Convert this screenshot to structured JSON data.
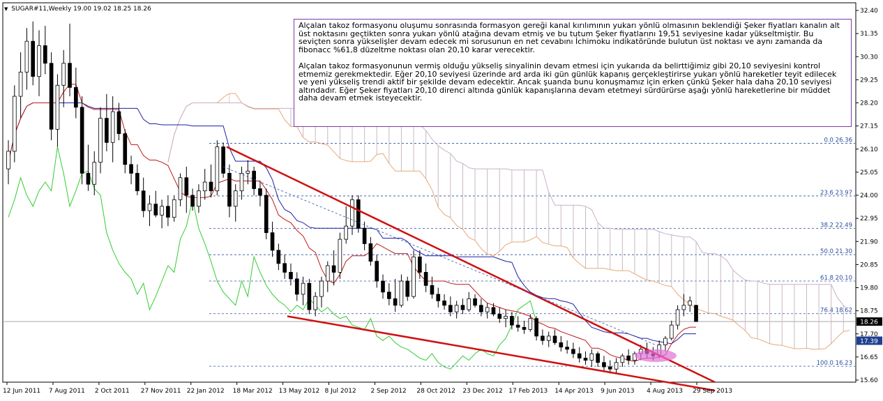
{
  "header": {
    "symbol": "SUGAR#11,Weekly",
    "ohlc": "19.00 19.02 18.25 18.26"
  },
  "annotation": {
    "paragraph1": "Alçalan takoz formasyonu oluşumu sonrasında formasyon gereği kanal kırılımının yukarı yönlü olmasının beklendiği Şeker fiyatları kanalın alt üst noktasını geçtikten sonra yukarı yönlü atağına devam etmiş ve bu tutum Şeker fiyatlarını 19,51 seviyesine kadar yükseltmiştir. Bu seviçten sonra yükselişler devam edecek mi sorusunun en net cevabını İchimoku indikatöründe bulutun üst noktası  ve aynı zamanda da fibonacc %61,8 düzeltme noktası olan 20,10 karar verecektir.",
    "paragraph2": "Alçalan takoz formasyonunun vermiş olduğu yükseliş sinyalinin devam etmesi için yukarıda da belirttiğimiz gibi 20,10 seviyesini kontrol etmemiz gerekmektedir. Eğer 20,10 seviyesi üzerinde ard arda iki gün günlük kapanış gerçekleştirirse yukarı yönlü hareketler teyit edilecek ve yeni yükseliş trendi aktif bir şekilde devam edecektir. Ancak şuanda bunu konuşmamız için erken çünkü Şeker hala daha 20,10 seviyesi altındadır. Eğer Şeker fiyatları 20,10 direnci altında günlük kapanışlarına devam etetmeyi sürdürürse aşağı yönlü hareketlerine bir müddet daha devam etmek isteyecektir."
  },
  "chart_data": {
    "type": "candlestick",
    "instrument": "SUGAR#11",
    "timeframe": "Weekly",
    "last": {
      "open": 19.0,
      "high": 19.02,
      "low": 18.25,
      "close": 18.26
    },
    "y_axis": {
      "range": [
        15.6,
        32.4
      ],
      "tick_labels": [
        "32.40",
        "31.35",
        "30.30",
        "29.25",
        "28.20",
        "27.15",
        "26.10",
        "25.05",
        "24.00",
        "22.95",
        "21.90",
        "20.85",
        "19.80",
        "18.75",
        "17.70",
        "16.65",
        "15.60"
      ]
    },
    "x_axis": {
      "tick_labels": [
        "12 Jun 2011",
        "7 Aug 2011",
        "2 Oct 2011",
        "27 Nov 2011",
        "22 Jan 2012",
        "18 Mar 2012",
        "13 May 2012",
        "8 Jul 2012",
        "2 Sep 2012",
        "28 Oct 2012",
        "23 Dec 2012",
        "17 Feb 2013",
        "14 Apr 2013",
        "9 Jun 2013",
        "4 Aug 2013",
        "29 Sep 2013"
      ]
    },
    "price_markers": [
      {
        "value": "18.26",
        "color": "#000000"
      },
      {
        "value": "17.39",
        "color": "#1f3f8f"
      }
    ],
    "fibonacci_levels": [
      {
        "label": "0.0 26.36",
        "value": 26.36
      },
      {
        "label": "23.6 23.97",
        "value": 23.97
      },
      {
        "label": "38.2 22.49",
        "value": 22.49
      },
      {
        "label": "50.0 21.30",
        "value": 21.3
      },
      {
        "label": "61.8 20.10",
        "value": 20.1
      },
      {
        "label": "76.4 18.62",
        "value": 18.62
      },
      {
        "label": "100.0 16.23",
        "value": 16.23
      }
    ],
    "wedge": {
      "upper": [
        [
          26.2,
          2012.19
        ],
        [
          15.6,
          2013.87
        ]
      ],
      "lower": [
        [
          18.5,
          2012.38
        ],
        [
          15.4,
          2013.87
        ]
      ]
    },
    "candles": [
      {
        "o": 25.2,
        "h": 26.5,
        "l": 24.5,
        "c": 26.0
      },
      {
        "o": 26.0,
        "h": 29.0,
        "l": 25.5,
        "c": 28.5
      },
      {
        "o": 28.5,
        "h": 30.5,
        "l": 27.5,
        "c": 29.6
      },
      {
        "o": 29.6,
        "h": 31.6,
        "l": 28.8,
        "c": 31.0
      },
      {
        "o": 31.0,
        "h": 31.9,
        "l": 29.0,
        "c": 29.4
      },
      {
        "o": 29.4,
        "h": 31.5,
        "l": 28.5,
        "c": 30.8
      },
      {
        "o": 30.8,
        "h": 31.7,
        "l": 29.5,
        "c": 30.0
      },
      {
        "o": 30.0,
        "h": 30.5,
        "l": 26.5,
        "c": 27.0
      },
      {
        "o": 27.0,
        "h": 29.5,
        "l": 26.2,
        "c": 29.0
      },
      {
        "o": 29.0,
        "h": 30.6,
        "l": 28.0,
        "c": 30.0
      },
      {
        "o": 30.0,
        "h": 31.8,
        "l": 28.5,
        "c": 28.9
      },
      {
        "o": 28.9,
        "h": 29.8,
        "l": 27.5,
        "c": 28.0
      },
      {
        "o": 28.0,
        "h": 28.5,
        "l": 24.5,
        "c": 25.0
      },
      {
        "o": 25.0,
        "h": 26.3,
        "l": 24.2,
        "c": 24.5
      },
      {
        "o": 24.5,
        "h": 26.0,
        "l": 24.0,
        "c": 25.5
      },
      {
        "o": 25.5,
        "h": 28.0,
        "l": 25.0,
        "c": 27.5
      },
      {
        "o": 27.5,
        "h": 28.6,
        "l": 26.0,
        "c": 26.4
      },
      {
        "o": 26.4,
        "h": 28.5,
        "l": 25.5,
        "c": 27.8
      },
      {
        "o": 27.8,
        "h": 28.2,
        "l": 26.5,
        "c": 26.8
      },
      {
        "o": 26.8,
        "h": 27.0,
        "l": 25.0,
        "c": 25.4
      },
      {
        "o": 25.4,
        "h": 25.8,
        "l": 24.5,
        "c": 25.0
      },
      {
        "o": 25.0,
        "h": 25.4,
        "l": 24.0,
        "c": 24.2
      },
      {
        "o": 24.2,
        "h": 24.8,
        "l": 23.0,
        "c": 23.3
      },
      {
        "o": 23.3,
        "h": 24.0,
        "l": 22.6,
        "c": 23.6
      },
      {
        "o": 23.6,
        "h": 24.2,
        "l": 23.0,
        "c": 23.1
      },
      {
        "o": 23.1,
        "h": 23.8,
        "l": 22.5,
        "c": 23.5
      },
      {
        "o": 23.5,
        "h": 24.0,
        "l": 22.6,
        "c": 23.0
      },
      {
        "o": 23.0,
        "h": 24.0,
        "l": 22.8,
        "c": 23.8
      },
      {
        "o": 23.8,
        "h": 25.0,
        "l": 23.5,
        "c": 24.8
      },
      {
        "o": 24.8,
        "h": 25.3,
        "l": 23.2,
        "c": 24.0
      },
      {
        "o": 24.0,
        "h": 24.3,
        "l": 23.3,
        "c": 23.5
      },
      {
        "o": 23.5,
        "h": 24.5,
        "l": 23.2,
        "c": 24.2
      },
      {
        "o": 24.2,
        "h": 25.2,
        "l": 23.8,
        "c": 24.6
      },
      {
        "o": 24.6,
        "h": 25.4,
        "l": 23.9,
        "c": 24.2
      },
      {
        "o": 24.2,
        "h": 26.5,
        "l": 24.0,
        "c": 26.2
      },
      {
        "o": 26.2,
        "h": 26.4,
        "l": 24.8,
        "c": 25.0
      },
      {
        "o": 25.0,
        "h": 25.4,
        "l": 23.0,
        "c": 23.5
      },
      {
        "o": 23.5,
        "h": 24.5,
        "l": 22.8,
        "c": 24.2
      },
      {
        "o": 24.2,
        "h": 25.3,
        "l": 23.8,
        "c": 25.0
      },
      {
        "o": 25.0,
        "h": 25.6,
        "l": 24.5,
        "c": 25.1
      },
      {
        "o": 25.1,
        "h": 25.3,
        "l": 24.0,
        "c": 24.3
      },
      {
        "o": 24.3,
        "h": 24.6,
        "l": 23.5,
        "c": 24.0
      },
      {
        "o": 24.0,
        "h": 24.3,
        "l": 22.0,
        "c": 22.3
      },
      {
        "o": 22.3,
        "h": 22.8,
        "l": 21.2,
        "c": 21.5
      },
      {
        "o": 21.5,
        "h": 21.8,
        "l": 20.6,
        "c": 20.9
      },
      {
        "o": 20.9,
        "h": 21.3,
        "l": 20.2,
        "c": 20.5
      },
      {
        "o": 20.5,
        "h": 20.9,
        "l": 19.9,
        "c": 20.2
      },
      {
        "o": 20.2,
        "h": 20.5,
        "l": 19.2,
        "c": 19.5
      },
      {
        "o": 19.5,
        "h": 20.3,
        "l": 19.0,
        "c": 20.0
      },
      {
        "o": 20.0,
        "h": 20.2,
        "l": 18.6,
        "c": 18.8
      },
      {
        "o": 18.8,
        "h": 19.6,
        "l": 18.5,
        "c": 19.4
      },
      {
        "o": 19.4,
        "h": 20.3,
        "l": 18.9,
        "c": 20.1
      },
      {
        "o": 20.1,
        "h": 21.0,
        "l": 19.6,
        "c": 20.8
      },
      {
        "o": 20.8,
        "h": 21.5,
        "l": 19.9,
        "c": 20.5
      },
      {
        "o": 20.5,
        "h": 22.3,
        "l": 20.2,
        "c": 22.0
      },
      {
        "o": 22.0,
        "h": 23.5,
        "l": 21.8,
        "c": 22.6
      },
      {
        "o": 22.6,
        "h": 24.0,
        "l": 22.2,
        "c": 23.8
      },
      {
        "o": 23.8,
        "h": 24.0,
        "l": 22.3,
        "c": 22.5
      },
      {
        "o": 22.5,
        "h": 22.8,
        "l": 21.5,
        "c": 21.8
      },
      {
        "o": 21.8,
        "h": 22.1,
        "l": 20.8,
        "c": 21.0
      },
      {
        "o": 21.0,
        "h": 21.3,
        "l": 19.8,
        "c": 20.1
      },
      {
        "o": 20.1,
        "h": 20.4,
        "l": 19.3,
        "c": 19.6
      },
      {
        "o": 19.6,
        "h": 20.0,
        "l": 19.0,
        "c": 19.3
      },
      {
        "o": 19.3,
        "h": 20.2,
        "l": 18.7,
        "c": 19.0
      },
      {
        "o": 19.0,
        "h": 20.4,
        "l": 18.9,
        "c": 20.1
      },
      {
        "o": 20.1,
        "h": 20.3,
        "l": 19.2,
        "c": 19.4
      },
      {
        "o": 19.4,
        "h": 21.5,
        "l": 19.3,
        "c": 21.2
      },
      {
        "o": 21.2,
        "h": 21.5,
        "l": 20.2,
        "c": 20.5
      },
      {
        "o": 20.5,
        "h": 20.9,
        "l": 19.6,
        "c": 19.9
      },
      {
        "o": 19.9,
        "h": 20.3,
        "l": 19.3,
        "c": 19.5
      },
      {
        "o": 19.5,
        "h": 19.8,
        "l": 18.9,
        "c": 19.2
      },
      {
        "o": 19.2,
        "h": 19.5,
        "l": 18.8,
        "c": 19.0
      },
      {
        "o": 19.0,
        "h": 19.4,
        "l": 18.5,
        "c": 18.7
      },
      {
        "o": 18.7,
        "h": 19.2,
        "l": 18.4,
        "c": 19.0
      },
      {
        "o": 19.0,
        "h": 19.3,
        "l": 18.6,
        "c": 18.8
      },
      {
        "o": 18.8,
        "h": 19.6,
        "l": 18.7,
        "c": 19.3
      },
      {
        "o": 19.3,
        "h": 19.5,
        "l": 18.9,
        "c": 19.0
      },
      {
        "o": 19.0,
        "h": 19.3,
        "l": 18.5,
        "c": 18.7
      },
      {
        "o": 18.7,
        "h": 19.1,
        "l": 18.4,
        "c": 18.9
      },
      {
        "o": 18.9,
        "h": 19.1,
        "l": 18.5,
        "c": 18.6
      },
      {
        "o": 18.6,
        "h": 18.9,
        "l": 18.2,
        "c": 18.4
      },
      {
        "o": 18.4,
        "h": 18.8,
        "l": 18.0,
        "c": 18.5
      },
      {
        "o": 18.5,
        "h": 18.7,
        "l": 17.9,
        "c": 18.1
      },
      {
        "o": 18.1,
        "h": 18.5,
        "l": 17.8,
        "c": 18.0
      },
      {
        "o": 18.0,
        "h": 18.3,
        "l": 17.7,
        "c": 17.9
      },
      {
        "o": 17.9,
        "h": 18.6,
        "l": 17.8,
        "c": 18.4
      },
      {
        "o": 18.4,
        "h": 18.5,
        "l": 17.4,
        "c": 17.6
      },
      {
        "o": 17.6,
        "h": 17.9,
        "l": 17.2,
        "c": 17.4
      },
      {
        "o": 17.4,
        "h": 17.8,
        "l": 17.1,
        "c": 17.6
      },
      {
        "o": 17.6,
        "h": 17.9,
        "l": 17.2,
        "c": 17.3
      },
      {
        "o": 17.3,
        "h": 17.6,
        "l": 16.9,
        "c": 17.1
      },
      {
        "o": 17.1,
        "h": 17.4,
        "l": 16.8,
        "c": 17.0
      },
      {
        "o": 17.0,
        "h": 17.3,
        "l": 16.6,
        "c": 16.8
      },
      {
        "o": 16.8,
        "h": 17.1,
        "l": 16.4,
        "c": 16.6
      },
      {
        "o": 16.6,
        "h": 16.9,
        "l": 16.3,
        "c": 16.5
      },
      {
        "o": 16.5,
        "h": 17.0,
        "l": 16.2,
        "c": 16.8
      },
      {
        "o": 16.8,
        "h": 16.9,
        "l": 16.2,
        "c": 16.4
      },
      {
        "o": 16.4,
        "h": 16.7,
        "l": 16.0,
        "c": 16.2
      },
      {
        "o": 16.2,
        "h": 16.5,
        "l": 15.9,
        "c": 16.1
      },
      {
        "o": 16.1,
        "h": 16.6,
        "l": 15.9,
        "c": 16.4
      },
      {
        "o": 16.4,
        "h": 16.8,
        "l": 16.2,
        "c": 16.7
      },
      {
        "o": 16.7,
        "h": 17.0,
        "l": 16.3,
        "c": 16.5
      },
      {
        "o": 16.5,
        "h": 16.9,
        "l": 16.3,
        "c": 16.8
      },
      {
        "o": 16.8,
        "h": 17.2,
        "l": 16.5,
        "c": 17.0
      },
      {
        "o": 17.0,
        "h": 17.3,
        "l": 16.6,
        "c": 16.8
      },
      {
        "o": 16.8,
        "h": 17.1,
        "l": 16.5,
        "c": 16.7
      },
      {
        "o": 16.7,
        "h": 17.4,
        "l": 16.6,
        "c": 17.2
      },
      {
        "o": 17.2,
        "h": 17.6,
        "l": 16.9,
        "c": 17.5
      },
      {
        "o": 17.5,
        "h": 18.3,
        "l": 17.4,
        "c": 18.1
      },
      {
        "o": 18.1,
        "h": 19.0,
        "l": 17.9,
        "c": 18.8
      },
      {
        "o": 18.8,
        "h": 19.51,
        "l": 18.5,
        "c": 19.0
      },
      {
        "o": 19.0,
        "h": 19.4,
        "l": 18.7,
        "c": 19.2
      },
      {
        "o": 19.0,
        "h": 19.02,
        "l": 18.25,
        "c": 18.26
      }
    ]
  }
}
